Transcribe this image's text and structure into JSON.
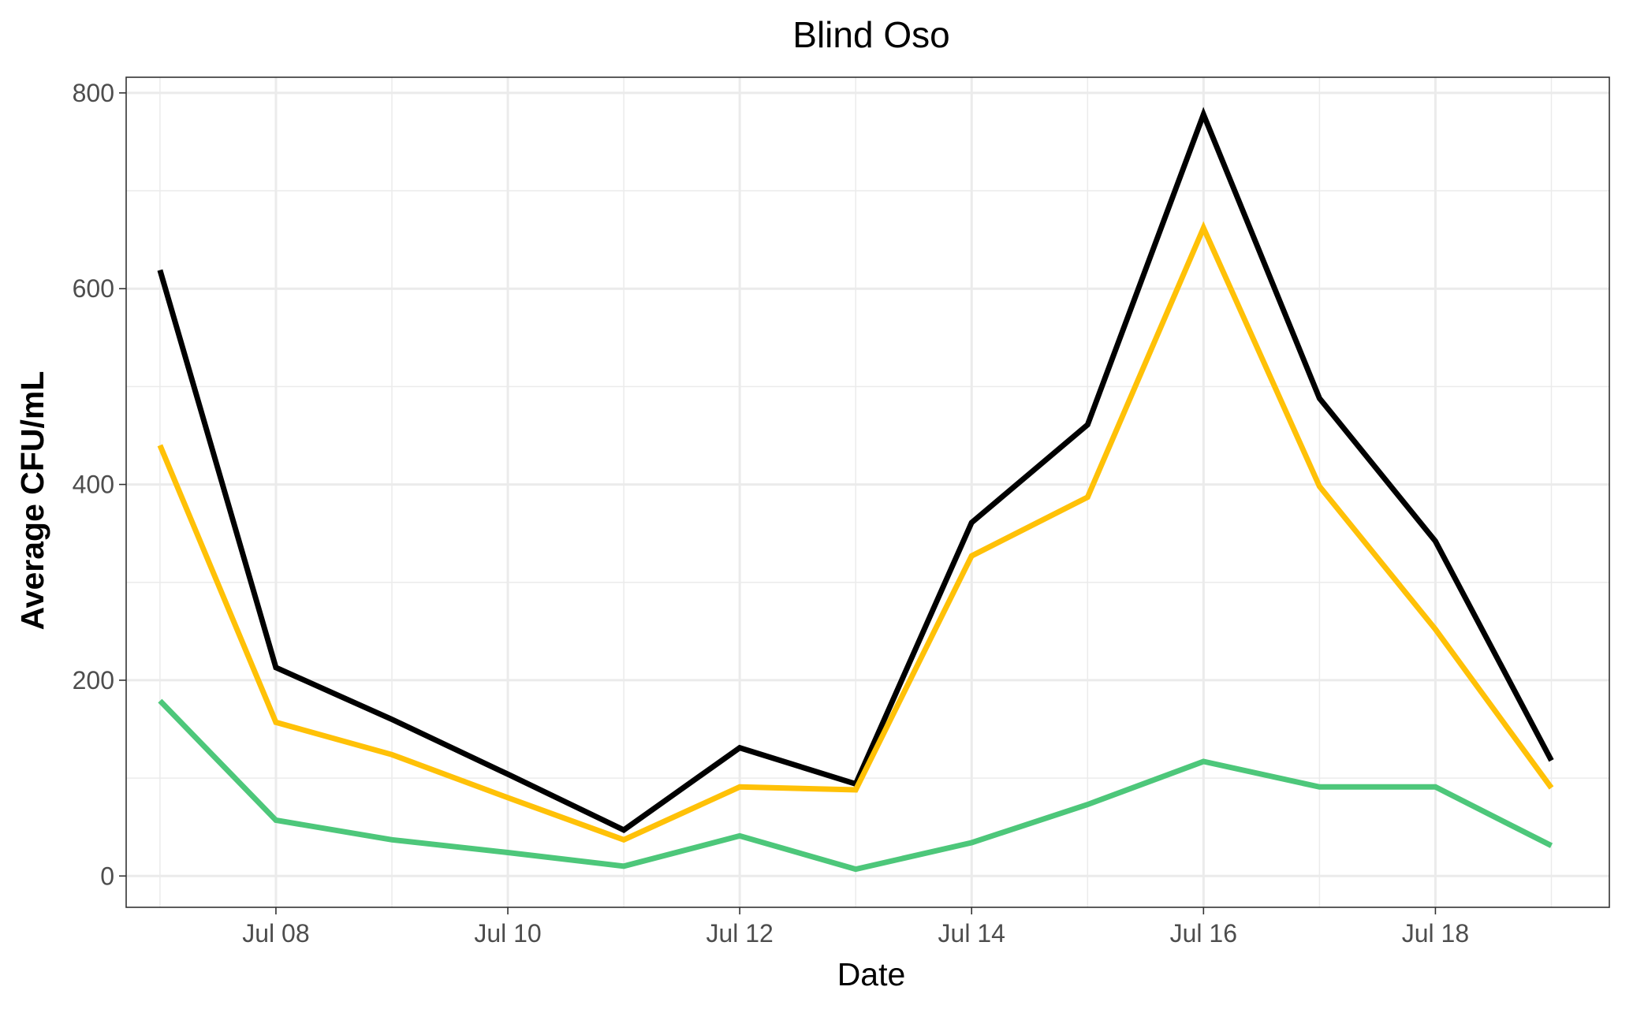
{
  "chart_data": {
    "type": "line",
    "title": "Blind Oso",
    "xlabel": "Date",
    "ylabel": "Average CFU/mL",
    "x": [
      "2023-07-07",
      "2023-07-08",
      "2023-07-09",
      "2023-07-10",
      "2023-07-11",
      "2023-07-12",
      "2023-07-13",
      "2023-07-14",
      "2023-07-15",
      "2023-07-16",
      "2023-07-17",
      "2023-07-18",
      "2023-07-19"
    ],
    "x_ticks": [
      "Jul 08",
      "Jul 10",
      "Jul 12",
      "Jul 14",
      "Jul 16",
      "Jul 18"
    ],
    "y_ticks": [
      "0",
      "200",
      "400",
      "600",
      "800"
    ],
    "xlim": [
      "2023-07-06T17:00",
      "2023-07-19T12:00"
    ],
    "ylim": [
      -32,
      816
    ],
    "grid": true,
    "legend": "none",
    "series": [
      {
        "color": "#000000",
        "values": [
          619,
          213,
          160,
          104,
          47,
          131,
          94,
          361,
          461,
          778,
          488,
          342,
          118
        ]
      },
      {
        "color": "#FFC107",
        "values": [
          440,
          157,
          124,
          80,
          37,
          91,
          88,
          327,
          387,
          662,
          398,
          252,
          90
        ]
      },
      {
        "color": "#4DC77A",
        "values": [
          179,
          57,
          37,
          24,
          10,
          41,
          7,
          34,
          73,
          117,
          91,
          91,
          31
        ]
      }
    ]
  }
}
